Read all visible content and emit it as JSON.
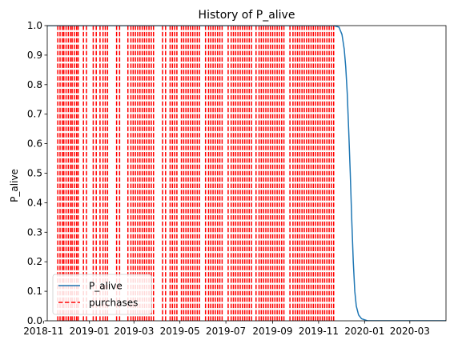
{
  "chart_data": {
    "type": "line",
    "title": "History of P_alive",
    "xlabel": "",
    "ylabel": "P_alive",
    "xlim": [
      "2018-11-06",
      "2020-04-18"
    ],
    "ylim": [
      0,
      1
    ],
    "x_ticks": [
      "2018-11",
      "2019-01",
      "2019-03",
      "2019-05",
      "2019-07",
      "2019-09",
      "2019-11",
      "2020-01",
      "2020-03"
    ],
    "y_ticks": [
      "0.0",
      "0.1",
      "0.2",
      "0.3",
      "0.4",
      "0.5",
      "0.6",
      "0.7",
      "0.8",
      "0.9",
      "1.0"
    ],
    "grid": false,
    "legend_position": "lower-left",
    "series": [
      {
        "name": "P_alive",
        "color": "#1f77b4",
        "style": "solid",
        "x": [
          "2018-11-06",
          "2019-11-21",
          "2019-11-28",
          "2019-12-02",
          "2019-12-05",
          "2019-12-07",
          "2019-12-09",
          "2019-12-11",
          "2019-12-13",
          "2019-12-15",
          "2019-12-17",
          "2019-12-19",
          "2019-12-21",
          "2019-12-24",
          "2019-12-28",
          "2020-01-05",
          "2020-04-18"
        ],
        "y": [
          1.0,
          1.0,
          0.995,
          0.97,
          0.92,
          0.86,
          0.77,
          0.64,
          0.5,
          0.34,
          0.2,
          0.1,
          0.05,
          0.02,
          0.007,
          0.0,
          0.0
        ]
      },
      {
        "name": "purchases",
        "color": "#ff0000",
        "style": "dashed",
        "type": "vline",
        "dates": [
          "2018-11-20",
          "2018-11-23",
          "2018-11-26",
          "2018-11-28",
          "2018-12-01",
          "2018-12-04",
          "2018-12-07",
          "2018-12-09",
          "2018-12-12",
          "2018-12-15",
          "2018-12-17",
          "2018-12-24",
          "2018-12-28",
          "2019-01-06",
          "2019-01-10",
          "2019-01-15",
          "2019-01-19",
          "2019-01-22",
          "2019-01-25",
          "2019-02-06",
          "2019-02-10",
          "2019-02-21",
          "2019-02-25",
          "2019-02-28",
          "2019-03-03",
          "2019-03-06",
          "2019-03-09",
          "2019-03-12",
          "2019-03-15",
          "2019-03-18",
          "2019-03-21",
          "2019-03-24",
          "2019-03-27",
          "2019-04-08",
          "2019-04-12",
          "2019-04-18",
          "2019-04-21",
          "2019-04-24",
          "2019-04-27",
          "2019-05-03",
          "2019-05-06",
          "2019-05-09",
          "2019-05-12",
          "2019-05-15",
          "2019-05-18",
          "2019-05-21",
          "2019-05-24",
          "2019-05-27",
          "2019-06-04",
          "2019-06-08",
          "2019-06-11",
          "2019-06-14",
          "2019-06-17",
          "2019-06-20",
          "2019-06-23",
          "2019-06-26",
          "2019-07-04",
          "2019-07-08",
          "2019-07-11",
          "2019-07-14",
          "2019-07-17",
          "2019-07-20",
          "2019-07-23",
          "2019-07-26",
          "2019-07-29",
          "2019-08-01",
          "2019-08-04",
          "2019-08-10",
          "2019-08-14",
          "2019-08-17",
          "2019-08-20",
          "2019-08-23",
          "2019-08-26",
          "2019-08-29",
          "2019-09-01",
          "2019-09-04",
          "2019-09-07",
          "2019-09-10",
          "2019-09-13",
          "2019-09-16",
          "2019-09-24",
          "2019-09-28",
          "2019-10-01",
          "2019-10-04",
          "2019-10-07",
          "2019-10-10",
          "2019-10-13",
          "2019-10-16",
          "2019-10-19",
          "2019-10-22",
          "2019-10-25",
          "2019-10-28",
          "2019-10-31",
          "2019-11-03",
          "2019-11-06",
          "2019-11-09",
          "2019-11-12",
          "2019-11-15",
          "2019-11-18",
          "2019-11-21"
        ]
      }
    ]
  }
}
